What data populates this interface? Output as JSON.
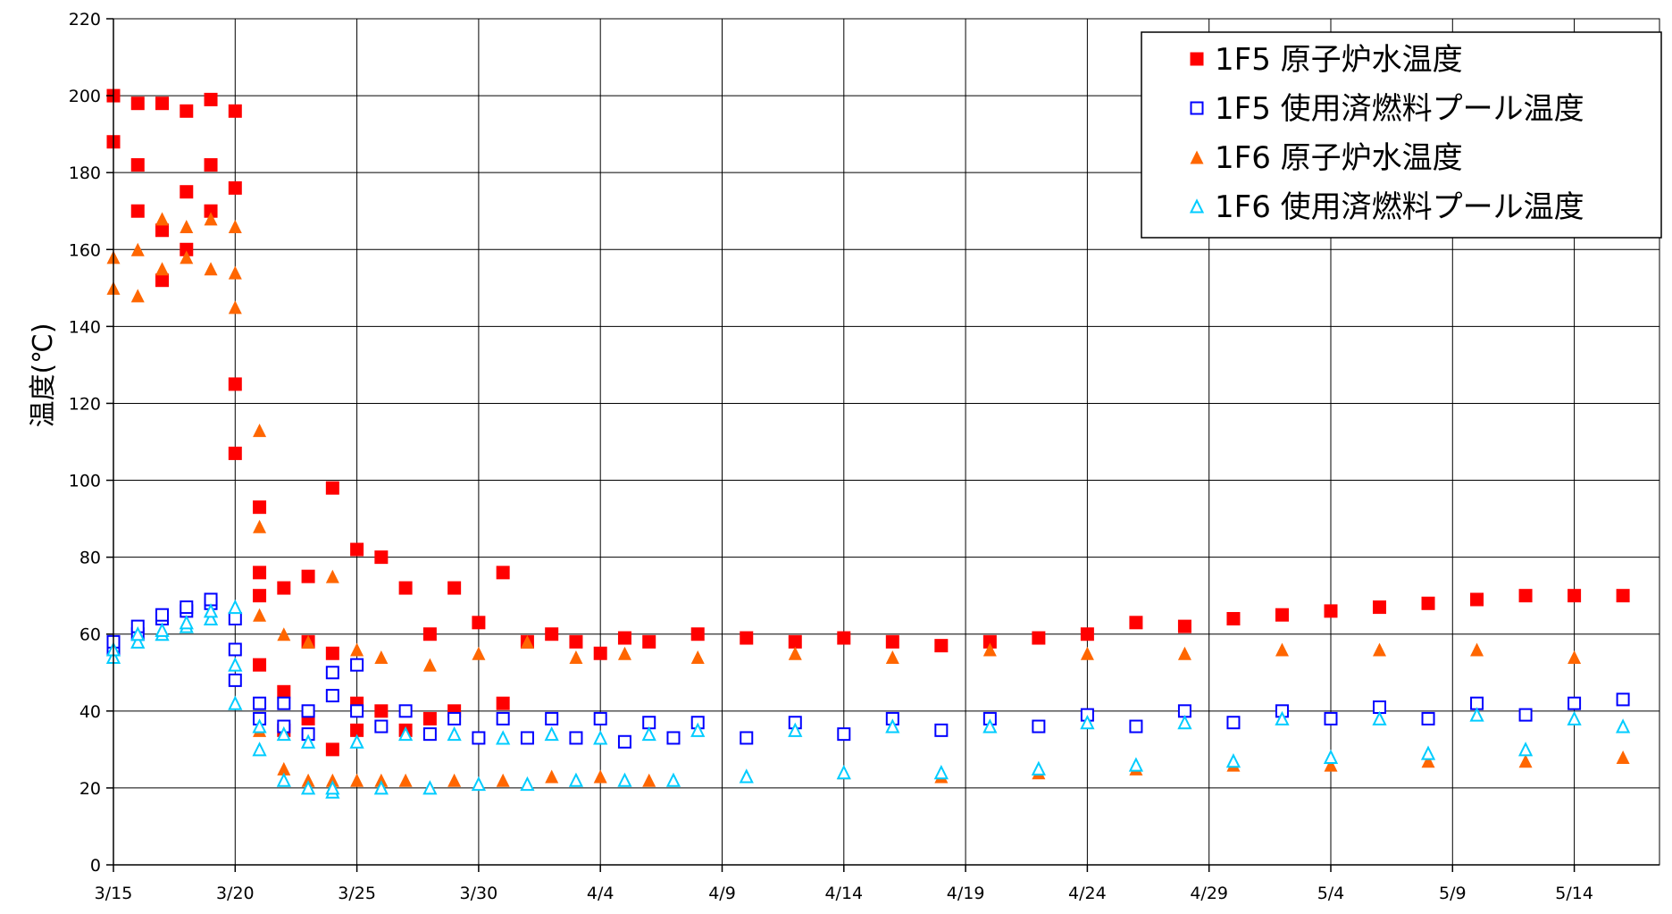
{
  "chart_data": {
    "type": "scatter",
    "title": "",
    "xlabel": "",
    "ylabel": "温度(℃)",
    "xlim": [
      "3/15",
      "5/17"
    ],
    "ylim": [
      0,
      220
    ],
    "yticks": [
      0,
      20,
      40,
      60,
      80,
      100,
      120,
      140,
      160,
      180,
      200,
      220
    ],
    "xticks": [
      "3/15",
      "3/20",
      "3/25",
      "3/30",
      "4/4",
      "4/9",
      "4/14",
      "4/19",
      "4/24",
      "4/29",
      "5/4",
      "5/9",
      "5/14"
    ],
    "grid": true,
    "legend_position": "top-right",
    "series": [
      {
        "name": "1F5 原子炉水温度",
        "marker": "filled-square",
        "color": "#ff0000",
        "x": [
          "3/15",
          "3/15",
          "3/16",
          "3/16",
          "3/16",
          "3/17",
          "3/17",
          "3/17",
          "3/18",
          "3/18",
          "3/18",
          "3/19",
          "3/19",
          "3/19",
          "3/20",
          "3/20",
          "3/20",
          "3/20",
          "3/21",
          "3/21",
          "3/21",
          "3/21",
          "3/22",
          "3/22",
          "3/22",
          "3/23",
          "3/23",
          "3/23",
          "3/24",
          "3/24",
          "3/24",
          "3/25",
          "3/25",
          "3/25",
          "3/26",
          "3/26",
          "3/27",
          "3/27",
          "3/28",
          "3/28",
          "3/29",
          "3/29",
          "3/30",
          "3/31",
          "3/31",
          "4/1",
          "4/2",
          "4/3",
          "4/4",
          "4/5",
          "4/6",
          "4/8",
          "4/10",
          "4/12",
          "4/14",
          "4/16",
          "4/18",
          "4/20",
          "4/22",
          "4/24",
          "4/26",
          "4/28",
          "4/30",
          "5/2",
          "5/4",
          "5/6",
          "5/8",
          "5/10",
          "5/12",
          "5/14",
          "5/16"
        ],
        "y": [
          188,
          200,
          170,
          198,
          182,
          165,
          198,
          152,
          175,
          196,
          160,
          182,
          199,
          170,
          176,
          196,
          125,
          107,
          93,
          76,
          70,
          52,
          45,
          72,
          35,
          75,
          38,
          58,
          30,
          98,
          55,
          82,
          42,
          35,
          80,
          40,
          72,
          35,
          60,
          38,
          72,
          40,
          63,
          76,
          42,
          58,
          60,
          58,
          55,
          59,
          58,
          60,
          59,
          58,
          59,
          58,
          57,
          58,
          59,
          60,
          63,
          62,
          64,
          65,
          66,
          67,
          68,
          69,
          70,
          70,
          70
        ]
      },
      {
        "name": "1F5 使用済燃料プール温度",
        "marker": "open-square",
        "color": "#0000ff",
        "x": [
          "3/15",
          "3/15",
          "3/16",
          "3/16",
          "3/17",
          "3/17",
          "3/18",
          "3/18",
          "3/19",
          "3/19",
          "3/20",
          "3/20",
          "3/20",
          "3/21",
          "3/21",
          "3/22",
          "3/22",
          "3/23",
          "3/23",
          "3/24",
          "3/24",
          "3/25",
          "3/25",
          "3/26",
          "3/27",
          "3/28",
          "3/29",
          "3/30",
          "3/31",
          "4/1",
          "4/2",
          "4/3",
          "4/4",
          "4/5",
          "4/6",
          "4/7",
          "4/8",
          "4/10",
          "4/12",
          "4/14",
          "4/16",
          "4/18",
          "4/20",
          "4/22",
          "4/24",
          "4/26",
          "4/28",
          "4/30",
          "5/2",
          "5/4",
          "5/6",
          "5/8",
          "5/10",
          "5/12",
          "5/14",
          "5/16"
        ],
        "y": [
          56,
          58,
          60,
          62,
          64,
          65,
          66,
          67,
          68,
          69,
          64,
          56,
          48,
          42,
          38,
          36,
          42,
          34,
          40,
          44,
          50,
          52,
          40,
          36,
          40,
          34,
          38,
          33,
          38,
          33,
          38,
          33,
          38,
          32,
          37,
          33,
          37,
          33,
          37,
          34,
          38,
          35,
          38,
          36,
          39,
          36,
          40,
          37,
          40,
          38,
          41,
          38,
          42,
          39,
          42,
          43
        ]
      },
      {
        "name": "1F6 原子炉水温度",
        "marker": "filled-triangle",
        "color": "#ff6600",
        "x": [
          "3/15",
          "3/15",
          "3/16",
          "3/16",
          "3/17",
          "3/17",
          "3/18",
          "3/18",
          "3/19",
          "3/19",
          "3/20",
          "3/20",
          "3/20",
          "3/21",
          "3/21",
          "3/21",
          "3/21",
          "3/22",
          "3/22",
          "3/23",
          "3/23",
          "3/24",
          "3/24",
          "3/25",
          "3/25",
          "3/26",
          "3/26",
          "3/27",
          "3/28",
          "3/29",
          "3/30",
          "3/31",
          "4/1",
          "4/2",
          "4/3",
          "4/4",
          "4/5",
          "4/6",
          "4/8",
          "4/10",
          "4/12",
          "4/14",
          "4/16",
          "4/18",
          "4/20",
          "4/22",
          "4/24",
          "4/26",
          "4/28",
          "4/30",
          "5/2",
          "5/4",
          "5/6",
          "5/8",
          "5/10",
          "5/12",
          "5/14",
          "5/16"
        ],
        "y": [
          150,
          158,
          148,
          160,
          155,
          168,
          158,
          166,
          155,
          168,
          154,
          166,
          145,
          113,
          88,
          65,
          35,
          25,
          60,
          22,
          58,
          22,
          75,
          22,
          56,
          22,
          54,
          22,
          52,
          22,
          55,
          22,
          58,
          23,
          54,
          23,
          55,
          22,
          54,
          23,
          55,
          24,
          54,
          23,
          56,
          24,
          55,
          25,
          55,
          26,
          56,
          26,
          56,
          27,
          56,
          27,
          54,
          28
        ]
      },
      {
        "name": "1F6 使用済燃料プール温度",
        "marker": "open-triangle",
        "color": "#00ccff",
        "x": [
          "3/15",
          "3/15",
          "3/16",
          "3/16",
          "3/17",
          "3/17",
          "3/18",
          "3/18",
          "3/19",
          "3/19",
          "3/20",
          "3/20",
          "3/20",
          "3/21",
          "3/21",
          "3/22",
          "3/22",
          "3/23",
          "3/23",
          "3/24",
          "3/24",
          "3/25",
          "3/26",
          "3/27",
          "3/28",
          "3/29",
          "3/30",
          "3/31",
          "4/1",
          "4/2",
          "4/3",
          "4/4",
          "4/5",
          "4/6",
          "4/7",
          "4/8",
          "4/10",
          "4/12",
          "4/14",
          "4/16",
          "4/18",
          "4/20",
          "4/22",
          "4/24",
          "4/26",
          "4/28",
          "4/30",
          "5/2",
          "5/4",
          "5/6",
          "5/8",
          "5/10",
          "5/12",
          "5/14",
          "5/16"
        ],
        "y": [
          54,
          56,
          58,
          60,
          60,
          61,
          62,
          63,
          64,
          66,
          67,
          52,
          42,
          30,
          36,
          22,
          34,
          20,
          32,
          19,
          20,
          32,
          20,
          34,
          20,
          34,
          21,
          33,
          21,
          34,
          22,
          33,
          22,
          34,
          22,
          35,
          23,
          35,
          24,
          36,
          24,
          36,
          25,
          37,
          26,
          37,
          27,
          38,
          28,
          38,
          29,
          39,
          30,
          38,
          36
        ]
      }
    ]
  }
}
